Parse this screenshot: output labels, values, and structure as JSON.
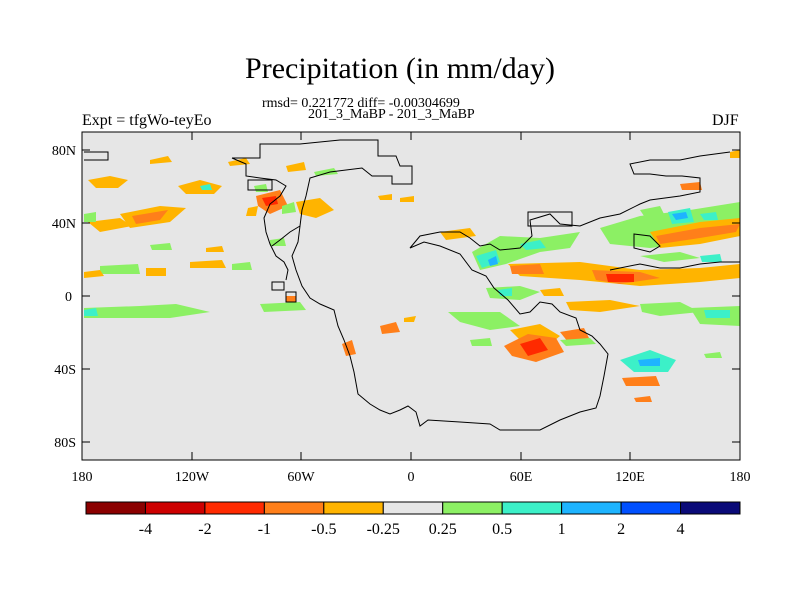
{
  "title": "Precipitation (in mm/day)",
  "stats": "rmsd= 0.221772 diff= -0.00304699",
  "cases": "201_3_MaBP - 201_3_MaBP",
  "experiment": "Expt = tfgWo-teyEo",
  "season": "DJF",
  "y_ticks": [
    "80N",
    "40N",
    "0",
    "40S",
    "80S"
  ],
  "x_ticks": [
    "180",
    "120W",
    "60W",
    "0",
    "60E",
    "120E",
    "180"
  ],
  "colorbar": {
    "colors": [
      "#8b0000",
      "#cd0000",
      "#ff2a00",
      "#ff7f1a",
      "#ffb400",
      "#e6e6e6",
      "#8cf064",
      "#3cf0c8",
      "#1eb4ff",
      "#0050ff",
      "#0a0a78"
    ],
    "labels": [
      "-4",
      "-2",
      "-1",
      "-0.5",
      "-0.25",
      "0.25",
      "0.5",
      "1",
      "2",
      "4"
    ]
  },
  "map": {
    "background": "#e6e6e6",
    "lon_range": [
      -180,
      180
    ],
    "lat_range": [
      -90,
      90
    ]
  }
}
